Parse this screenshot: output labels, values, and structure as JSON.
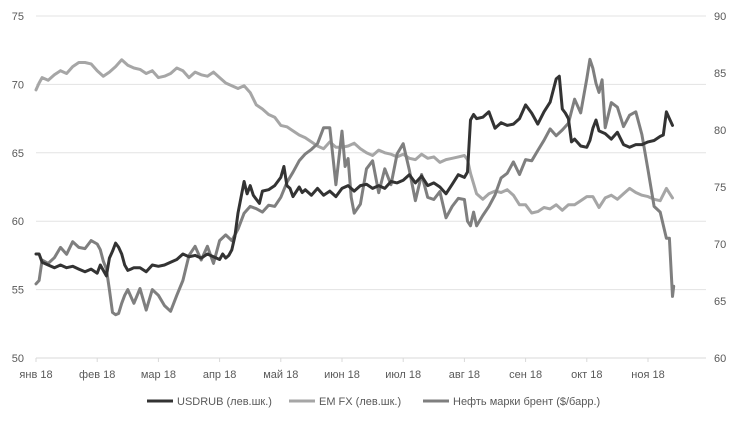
{
  "chart_data": {
    "type": "line",
    "title": "",
    "xlabel": "",
    "ylabel": "",
    "ylabel_right": "",
    "grid": true,
    "legend_position": "bottom",
    "y_left": {
      "lim": [
        50,
        75
      ],
      "ticks": [
        50,
        55,
        60,
        65,
        70,
        75
      ]
    },
    "y_right": {
      "lim": [
        60,
        90
      ],
      "ticks": [
        60,
        65,
        70,
        75,
        80,
        85,
        90
      ]
    },
    "x_ticks": [
      {
        "label": "янв 18",
        "pos": 0
      },
      {
        "label": "фев 18",
        "pos": 1
      },
      {
        "label": "мар 18",
        "pos": 2
      },
      {
        "label": "апр 18",
        "pos": 3
      },
      {
        "label": "май 18",
        "pos": 4
      },
      {
        "label": "июн 18",
        "pos": 5
      },
      {
        "label": "июл 18",
        "pos": 6
      },
      {
        "label": "авг 18",
        "pos": 7
      },
      {
        "label": "сен 18",
        "pos": 8
      },
      {
        "label": "окт 18",
        "pos": 9
      },
      {
        "label": "ноя 18",
        "pos": 10
      }
    ],
    "x_lim": [
      0,
      10.45
    ],
    "series": [
      {
        "name": "USDRUB (лев.шк.)",
        "axis": "left",
        "color": "#333333",
        "x": [
          0,
          0.05,
          0.1,
          0.2,
          0.3,
          0.4,
          0.5,
          0.6,
          0.7,
          0.8,
          0.9,
          1.0,
          1.05,
          1.1,
          1.15,
          1.2,
          1.25,
          1.3,
          1.35,
          1.4,
          1.45,
          1.5,
          1.55,
          1.6,
          1.7,
          1.8,
          1.9,
          2.0,
          2.1,
          2.2,
          2.3,
          2.4,
          2.5,
          2.6,
          2.7,
          2.8,
          2.9,
          3.0,
          3.05,
          3.1,
          3.15,
          3.2,
          3.25,
          3.3,
          3.4,
          3.45,
          3.5,
          3.55,
          3.6,
          3.65,
          3.7,
          3.8,
          3.9,
          4.0,
          4.05,
          4.1,
          4.15,
          4.2,
          4.3,
          4.35,
          4.4,
          4.5,
          4.6,
          4.7,
          4.8,
          4.9,
          5.0,
          5.1,
          5.2,
          5.3,
          5.4,
          5.5,
          5.6,
          5.7,
          5.8,
          5.9,
          6.0,
          6.1,
          6.2,
          6.3,
          6.4,
          6.5,
          6.6,
          6.7,
          6.8,
          6.9,
          7.0,
          7.05,
          7.1,
          7.15,
          7.2,
          7.3,
          7.4,
          7.5,
          7.6,
          7.7,
          7.8,
          7.9,
          8.0,
          8.1,
          8.2,
          8.3,
          8.4,
          8.5,
          8.55,
          8.6,
          8.65,
          8.7,
          8.75,
          8.8,
          8.9,
          9.0,
          9.05,
          9.1,
          9.15,
          9.2,
          9.3,
          9.4,
          9.5,
          9.6,
          9.7,
          9.8,
          9.9,
          10.0,
          10.1,
          10.2,
          10.25,
          10.3,
          10.35,
          10.4
        ],
        "values": [
          57.6,
          57.6,
          57.0,
          56.8,
          56.6,
          56.8,
          56.6,
          56.7,
          56.5,
          56.3,
          56.5,
          56.2,
          56.8,
          56.4,
          56.0,
          57.3,
          57.8,
          58.4,
          58.1,
          57.6,
          56.8,
          56.4,
          56.5,
          56.6,
          56.6,
          56.3,
          56.8,
          56.7,
          56.8,
          57.0,
          57.2,
          57.6,
          57.4,
          57.5,
          57.3,
          57.6,
          57.4,
          57.2,
          57.6,
          57.3,
          57.5,
          57.9,
          58.9,
          60.6,
          62.9,
          62.0,
          62.6,
          61.9,
          61.6,
          61.3,
          62.2,
          62.3,
          62.6,
          63.2,
          64.0,
          62.6,
          62.4,
          61.8,
          62.5,
          62.1,
          62.3,
          61.9,
          62.4,
          61.9,
          62.2,
          61.8,
          62.4,
          62.6,
          62.2,
          62.6,
          62.7,
          62.4,
          62.6,
          62.4,
          62.9,
          62.8,
          63.0,
          63.4,
          62.8,
          63.3,
          62.6,
          62.8,
          62.5,
          62.0,
          62.7,
          63.4,
          63.2,
          63.6,
          67.4,
          67.8,
          67.5,
          67.6,
          68.0,
          66.8,
          67.2,
          67.0,
          67.1,
          67.5,
          68.5,
          67.9,
          67.1,
          68.0,
          68.7,
          70.4,
          70.6,
          68.2,
          67.9,
          67.5,
          65.8,
          66.0,
          65.5,
          65.4,
          65.9,
          66.8,
          67.4,
          66.6,
          66.4,
          66.0,
          66.5,
          65.6,
          65.4,
          65.6,
          65.6,
          65.8,
          65.9,
          66.2,
          66.3,
          68.0,
          67.5,
          67.0
        ]
      },
      {
        "name": "EM FX (лев.шк.)",
        "axis": "left",
        "color": "#a6a6a6",
        "x": [
          0,
          0.05,
          0.1,
          0.2,
          0.3,
          0.4,
          0.5,
          0.6,
          0.7,
          0.8,
          0.9,
          1.0,
          1.1,
          1.2,
          1.3,
          1.4,
          1.5,
          1.6,
          1.7,
          1.8,
          1.9,
          2.0,
          2.1,
          2.2,
          2.3,
          2.4,
          2.5,
          2.6,
          2.7,
          2.8,
          2.9,
          3.0,
          3.1,
          3.2,
          3.3,
          3.4,
          3.5,
          3.6,
          3.7,
          3.8,
          3.9,
          4.0,
          4.1,
          4.2,
          4.3,
          4.4,
          4.5,
          4.6,
          4.7,
          4.8,
          4.9,
          5.0,
          5.1,
          5.2,
          5.3,
          5.4,
          5.5,
          5.6,
          5.7,
          5.8,
          5.9,
          6.0,
          6.1,
          6.2,
          6.3,
          6.4,
          6.5,
          6.6,
          6.7,
          6.8,
          6.9,
          7.0,
          7.05,
          7.1,
          7.2,
          7.3,
          7.4,
          7.5,
          7.6,
          7.7,
          7.8,
          7.9,
          8.0,
          8.1,
          8.2,
          8.3,
          8.4,
          8.5,
          8.6,
          8.7,
          8.8,
          8.9,
          9.0,
          9.1,
          9.2,
          9.3,
          9.4,
          9.5,
          9.6,
          9.7,
          9.8,
          9.9,
          10.0,
          10.1,
          10.2,
          10.3,
          10.4
        ],
        "values": [
          69.6,
          70.1,
          70.5,
          70.3,
          70.7,
          71.0,
          70.8,
          71.3,
          71.6,
          71.6,
          71.5,
          71.0,
          70.6,
          70.9,
          71.3,
          71.8,
          71.4,
          71.2,
          71.1,
          70.8,
          71.0,
          70.5,
          70.6,
          70.8,
          71.2,
          71.0,
          70.5,
          70.9,
          70.7,
          70.6,
          70.9,
          70.5,
          70.1,
          69.9,
          69.7,
          69.9,
          69.4,
          68.5,
          68.2,
          67.8,
          67.6,
          67.0,
          66.9,
          66.6,
          66.3,
          66.1,
          65.8,
          65.5,
          65.3,
          65.8,
          65.4,
          65.4,
          65.5,
          65.7,
          65.3,
          65.0,
          64.8,
          65.2,
          65.0,
          64.9,
          64.7,
          64.9,
          64.6,
          64.5,
          64.9,
          64.6,
          64.7,
          64.3,
          64.5,
          64.6,
          64.7,
          64.8,
          64.5,
          63.5,
          62.0,
          61.6,
          62.0,
          62.2,
          62.1,
          62.3,
          61.9,
          61.2,
          61.2,
          60.6,
          60.7,
          61.0,
          60.9,
          61.2,
          60.8,
          61.2,
          61.2,
          61.5,
          61.8,
          61.8,
          61.0,
          61.7,
          61.9,
          61.6,
          62.0,
          62.4,
          62.1,
          61.9,
          61.8,
          61.6,
          61.5,
          62.4,
          61.7
        ]
      },
      {
        "name": "Нефть марки брент ($/барр.)",
        "axis": "right",
        "color": "#7f7f7f",
        "x": [
          0,
          0.05,
          0.1,
          0.2,
          0.3,
          0.4,
          0.5,
          0.6,
          0.7,
          0.8,
          0.9,
          1.0,
          1.05,
          1.1,
          1.15,
          1.2,
          1.25,
          1.3,
          1.35,
          1.4,
          1.45,
          1.5,
          1.6,
          1.7,
          1.8,
          1.9,
          2.0,
          2.1,
          2.2,
          2.3,
          2.4,
          2.5,
          2.6,
          2.7,
          2.8,
          2.9,
          3.0,
          3.1,
          3.2,
          3.3,
          3.4,
          3.5,
          3.6,
          3.7,
          3.8,
          3.9,
          4.0,
          4.1,
          4.2,
          4.3,
          4.4,
          4.5,
          4.6,
          4.7,
          4.8,
          4.9,
          5.0,
          5.05,
          5.1,
          5.15,
          5.2,
          5.3,
          5.4,
          5.5,
          5.6,
          5.7,
          5.8,
          5.9,
          6.0,
          6.1,
          6.2,
          6.3,
          6.4,
          6.5,
          6.6,
          6.7,
          6.8,
          6.9,
          7.0,
          7.05,
          7.1,
          7.15,
          7.2,
          7.3,
          7.4,
          7.5,
          7.6,
          7.7,
          7.8,
          7.9,
          8.0,
          8.1,
          8.2,
          8.3,
          8.4,
          8.5,
          8.6,
          8.7,
          8.8,
          8.9,
          9.0,
          9.05,
          9.1,
          9.15,
          9.2,
          9.25,
          9.3,
          9.4,
          9.5,
          9.6,
          9.7,
          9.8,
          9.9,
          10.0,
          10.1,
          10.2,
          10.3,
          10.35,
          10.4,
          10.42
        ],
        "values": [
          66.5,
          66.8,
          68.6,
          68.3,
          68.8,
          69.7,
          69.1,
          70.2,
          69.7,
          69.6,
          70.3,
          70.0,
          69.5,
          68.5,
          67.8,
          66.0,
          64.0,
          63.8,
          63.9,
          64.8,
          65.5,
          66.0,
          64.8,
          66.1,
          64.2,
          66.0,
          65.5,
          64.6,
          64.1,
          65.5,
          66.8,
          69.0,
          69.8,
          68.6,
          69.8,
          68.3,
          70.3,
          70.8,
          70.3,
          71.3,
          72.7,
          73.3,
          73.1,
          72.8,
          73.4,
          73.3,
          74.1,
          75.4,
          76.3,
          77.3,
          77.9,
          78.3,
          78.8,
          80.2,
          80.2,
          75.2,
          79.9,
          76.8,
          77.5,
          74.1,
          72.7,
          73.5,
          76.6,
          77.3,
          74.5,
          76.6,
          75.2,
          77.9,
          78.8,
          76.5,
          73.8,
          76.1,
          74.1,
          73.9,
          74.6,
          72.3,
          73.3,
          74.0,
          73.9,
          72.0,
          71.6,
          72.8,
          71.6,
          72.5,
          73.3,
          74.3,
          75.8,
          76.2,
          77.2,
          76.1,
          77.4,
          77.3,
          78.2,
          79.1,
          80.1,
          79.5,
          80.0,
          80.6,
          82.7,
          81.5,
          84.5,
          86.2,
          85.4,
          84.1,
          83.3,
          84.4,
          80.2,
          82.4,
          82.0,
          80.3,
          81.3,
          81.6,
          79.6,
          76.5,
          73.3,
          72.8,
          70.5,
          70.5,
          65.4,
          66.3
        ]
      }
    ]
  }
}
